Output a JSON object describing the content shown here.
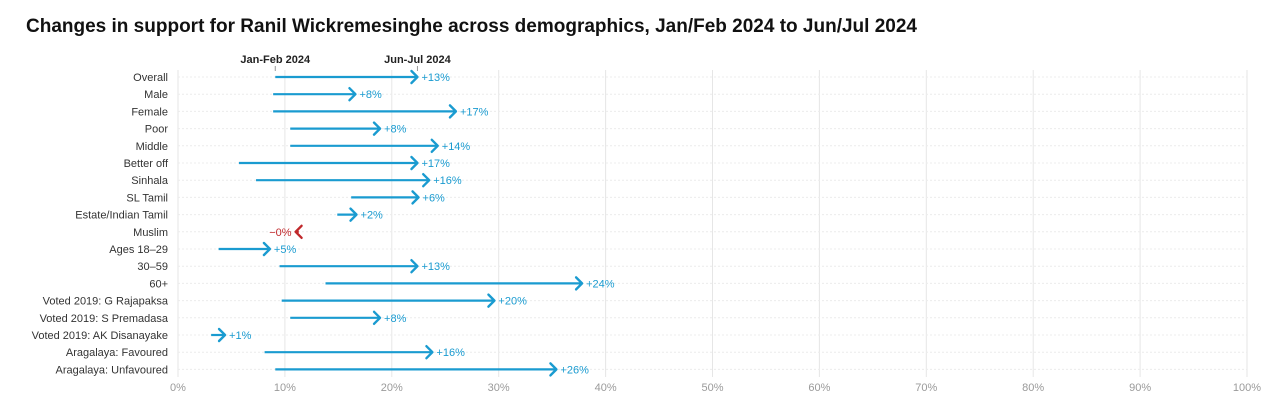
{
  "chart_data": {
    "type": "arrow",
    "title": "Changes in support for Ranil Wickremesinghe across demographics, Jan/Feb 2024 to Jun/Jul 2024",
    "period_labels": {
      "start": "Jan-Feb 2024",
      "end": "Jun-Jul 2024"
    },
    "xlim": [
      0,
      100
    ],
    "x_ticks": [
      "0%",
      "10%",
      "20%",
      "30%",
      "40%",
      "50%",
      "60%",
      "70%",
      "80%",
      "90%",
      "100%"
    ],
    "grid": true,
    "colors": {
      "increase": "#1a9bd0",
      "decrease": "#c0282b",
      "grid": "#e6e6e6"
    },
    "categories": [
      "Overall",
      "Male",
      "Female",
      "Poor",
      "Middle",
      "Better off",
      "Sinhala",
      "SL Tamil",
      "Estate/Indian Tamil",
      "Muslim",
      "Ages 18–29",
      "30–59",
      "60+",
      "Voted 2019: G Rajapaksa",
      "Voted 2019: S Premadasa",
      "Voted 2019: AK Disanayake",
      "Aragalaya: Favoured",
      "Aragalaya: Unfavoured"
    ],
    "series": [
      {
        "name": "Jan-Feb 2024",
        "values": [
          9.1,
          8.9,
          8.9,
          10.5,
          10.5,
          5.7,
          7.3,
          16.2,
          14.9,
          11.3,
          3.8,
          9.5,
          13.8,
          9.7,
          10.5,
          3.1,
          8.1,
          9.1
        ]
      },
      {
        "name": "Jun-Jul 2024",
        "values": [
          22.4,
          16.6,
          26.0,
          18.9,
          24.3,
          22.4,
          23.5,
          22.5,
          16.7,
          11.0,
          8.6,
          22.4,
          37.8,
          29.6,
          18.9,
          4.4,
          23.8,
          35.4
        ]
      }
    ],
    "change_labels": [
      "+13%",
      "+8%",
      "+17%",
      "+8%",
      "+14%",
      "+17%",
      "+16%",
      "+6%",
      "+2%",
      "−0%",
      "+5%",
      "+13%",
      "+24%",
      "+20%",
      "+8%",
      "+1%",
      "+16%",
      "+26%"
    ]
  }
}
